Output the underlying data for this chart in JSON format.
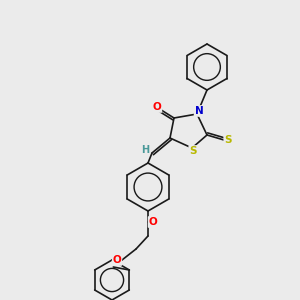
{
  "bg_color": "#ebebeb",
  "bond_color": "#1a1a1a",
  "atom_colors": {
    "O": "#ff0000",
    "N": "#0000cc",
    "S": "#b8b800",
    "H": "#4a9999",
    "C": "#1a1a1a"
  },
  "font_size_atom": 7.5,
  "fig_size": [
    3.0,
    3.0
  ],
  "dpi": 100
}
